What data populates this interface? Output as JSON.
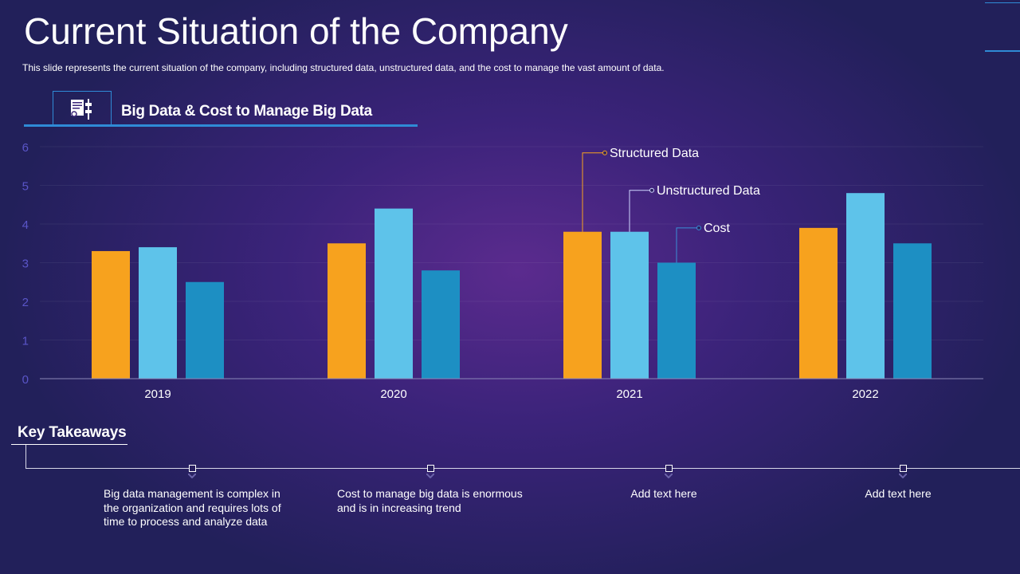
{
  "slide": {
    "title": "Current Situation of the Company",
    "subtitle": "This slide represents the current situation of the company, including structured data, unstructured data, and the cost to manage the vast amount of data.",
    "chart_heading": "Big Data & Cost to Manage Big Data",
    "icon": "server-document-icon"
  },
  "chart_data": {
    "type": "bar",
    "title": "Big Data & Cost to Manage Big Data",
    "categories": [
      "2019",
      "2020",
      "2021",
      "2022"
    ],
    "series": [
      {
        "name": "Structured Data",
        "values": [
          3.3,
          3.5,
          3.8,
          3.9
        ],
        "color": "#f7a21e"
      },
      {
        "name": "Unstructured Data",
        "values": [
          3.4,
          4.4,
          3.8,
          4.8
        ],
        "color": "#5ec3ea"
      },
      {
        "name": "Cost",
        "values": [
          2.5,
          2.8,
          3.0,
          3.5
        ],
        "color": "#1d8fc3"
      }
    ],
    "ylim": [
      0,
      6
    ],
    "yticks": [
      "0",
      "1",
      "2",
      "3",
      "4",
      "5",
      "6"
    ],
    "xlabel": "",
    "ylabel": "",
    "grid": true,
    "legend": "callouts on 2021 bars",
    "tick_color": "#5a55c8"
  },
  "takeaways": {
    "title": "Key Takeaways",
    "items": [
      "Big data management is complex in the organization and requires lots of time to process and analyze data",
      "Cost to manage big data is enormous and is in increasing trend",
      "Add text here",
      "Add text here"
    ]
  }
}
